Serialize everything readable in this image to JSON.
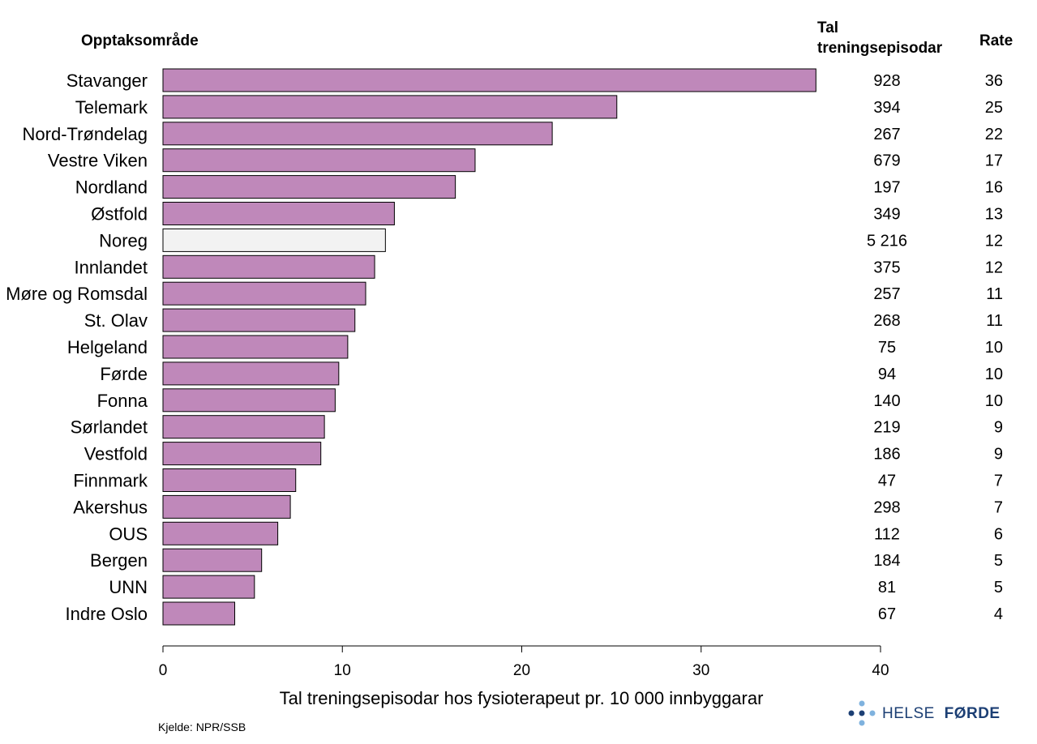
{
  "headers": {
    "area": "Opptaksområde",
    "count_line1": "Tal",
    "count_line2": "treningsepisodar",
    "rate": "Rate"
  },
  "chart_data": {
    "type": "bar",
    "orientation": "horizontal",
    "title": "",
    "xlabel": "Tal treningsepisodar hos fysioterapeut pr. 10 000 innbyggarar",
    "ylabel": "Opptaksområde",
    "xlim": [
      0,
      40
    ],
    "xticks": [
      0,
      10,
      20,
      30,
      40
    ],
    "grid": false,
    "categories": [
      "Stavanger",
      "Telemark",
      "Nord-Trøndelag",
      "Vestre Viken",
      "Nordland",
      "Østfold",
      "Noreg",
      "Innlandet",
      "Møre og Romsdal",
      "St. Olav",
      "Helgeland",
      "Førde",
      "Fonna",
      "Sørlandet",
      "Vestfold",
      "Finnmark",
      "Akershus",
      "OUS",
      "Bergen",
      "UNN",
      "Indre Oslo"
    ],
    "values": [
      36.4,
      25.3,
      21.7,
      17.4,
      16.3,
      12.9,
      12.4,
      11.8,
      11.3,
      10.7,
      10.3,
      9.8,
      9.6,
      9.0,
      8.8,
      7.4,
      7.1,
      6.4,
      5.5,
      5.1,
      4.0
    ],
    "counts": [
      "928",
      "394",
      "267",
      "679",
      "197",
      "349",
      "5 216",
      "375",
      "257",
      "268",
      "75",
      "94",
      "140",
      "219",
      "186",
      "47",
      "298",
      "112",
      "184",
      "81",
      "67"
    ],
    "rates": [
      "36",
      "25",
      "22",
      "17",
      "16",
      "13",
      "12",
      "12",
      "11",
      "11",
      "10",
      "10",
      "10",
      "9",
      "9",
      "7",
      "7",
      "6",
      "5",
      "5",
      "4"
    ],
    "highlight_category": "Noreg",
    "colors": {
      "bar": "#bf88ba",
      "highlight": "#f2f2f2",
      "outline": "#000000"
    }
  },
  "source": "Kjelde: NPR/SSB",
  "logo": {
    "text_part1": "HELSE",
    "text_part2": "FØRDE",
    "color_dark": "#1c3f74",
    "color_light": "#7fb2de"
  }
}
